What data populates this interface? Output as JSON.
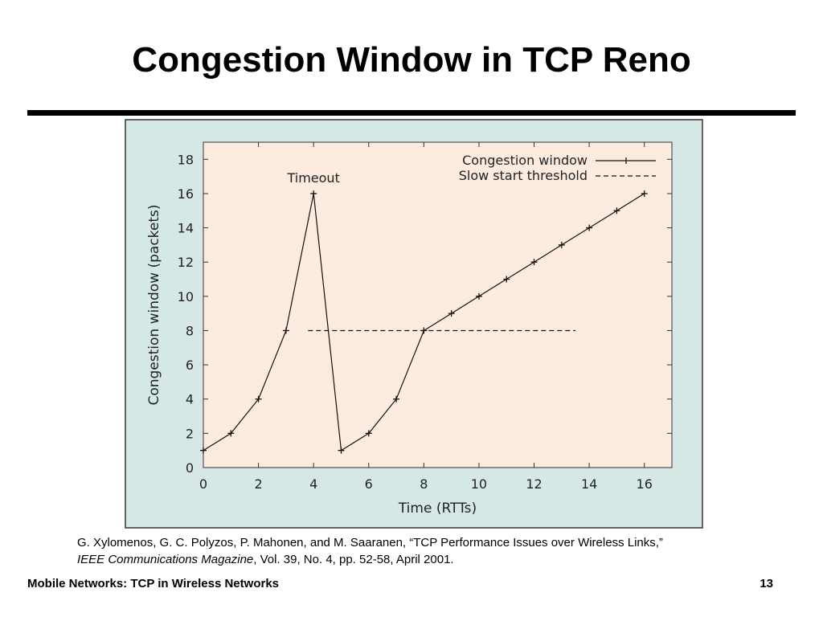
{
  "slide": {
    "title": "Congestion Window in TCP Reno",
    "citation_line1": "G. Xylomenos, G. C. Polyzos, P. Mahonen, and M. Saaranen, “TCP Performance Issues over Wireless Links,”",
    "citation_journal": "IEEE Communications Magazine",
    "citation_rest": ", Vol. 39, No. 4, pp. 52-58, April 2001.",
    "footer_left": "Mobile Networks:  TCP in Wireless Networks",
    "page_number": "13"
  },
  "colors": {
    "figure_bg": "#d6e8e6",
    "plot_bg": "#fdebe0",
    "line": "#111111"
  },
  "chart_data": {
    "type": "line",
    "title": "",
    "xlabel": "Time (RTTs)",
    "ylabel": "Congestion window (packets)",
    "xlim": [
      0,
      17
    ],
    "ylim": [
      0,
      19
    ],
    "xticks": [
      0,
      2,
      4,
      6,
      8,
      10,
      12,
      14,
      16
    ],
    "yticks": [
      0,
      2,
      4,
      6,
      8,
      10,
      12,
      14,
      16,
      18
    ],
    "grid": false,
    "legend_position": "top-right",
    "series": [
      {
        "name": "Congestion window",
        "style": "solid-with-plus-markers",
        "x": [
          0,
          1,
          2,
          3,
          4,
          5,
          6,
          7,
          8,
          9,
          10,
          11,
          12,
          13,
          14,
          15,
          16
        ],
        "y": [
          1,
          2,
          4,
          8,
          16,
          1,
          2,
          4,
          8,
          9,
          10,
          11,
          12,
          13,
          14,
          15,
          16
        ]
      },
      {
        "name": "Slow start threshold",
        "style": "dashed",
        "x": [
          3.8,
          13.5
        ],
        "y": [
          8,
          8
        ]
      }
    ],
    "annotations": [
      {
        "text": "Timeout",
        "x": 4,
        "y": 16
      }
    ]
  }
}
